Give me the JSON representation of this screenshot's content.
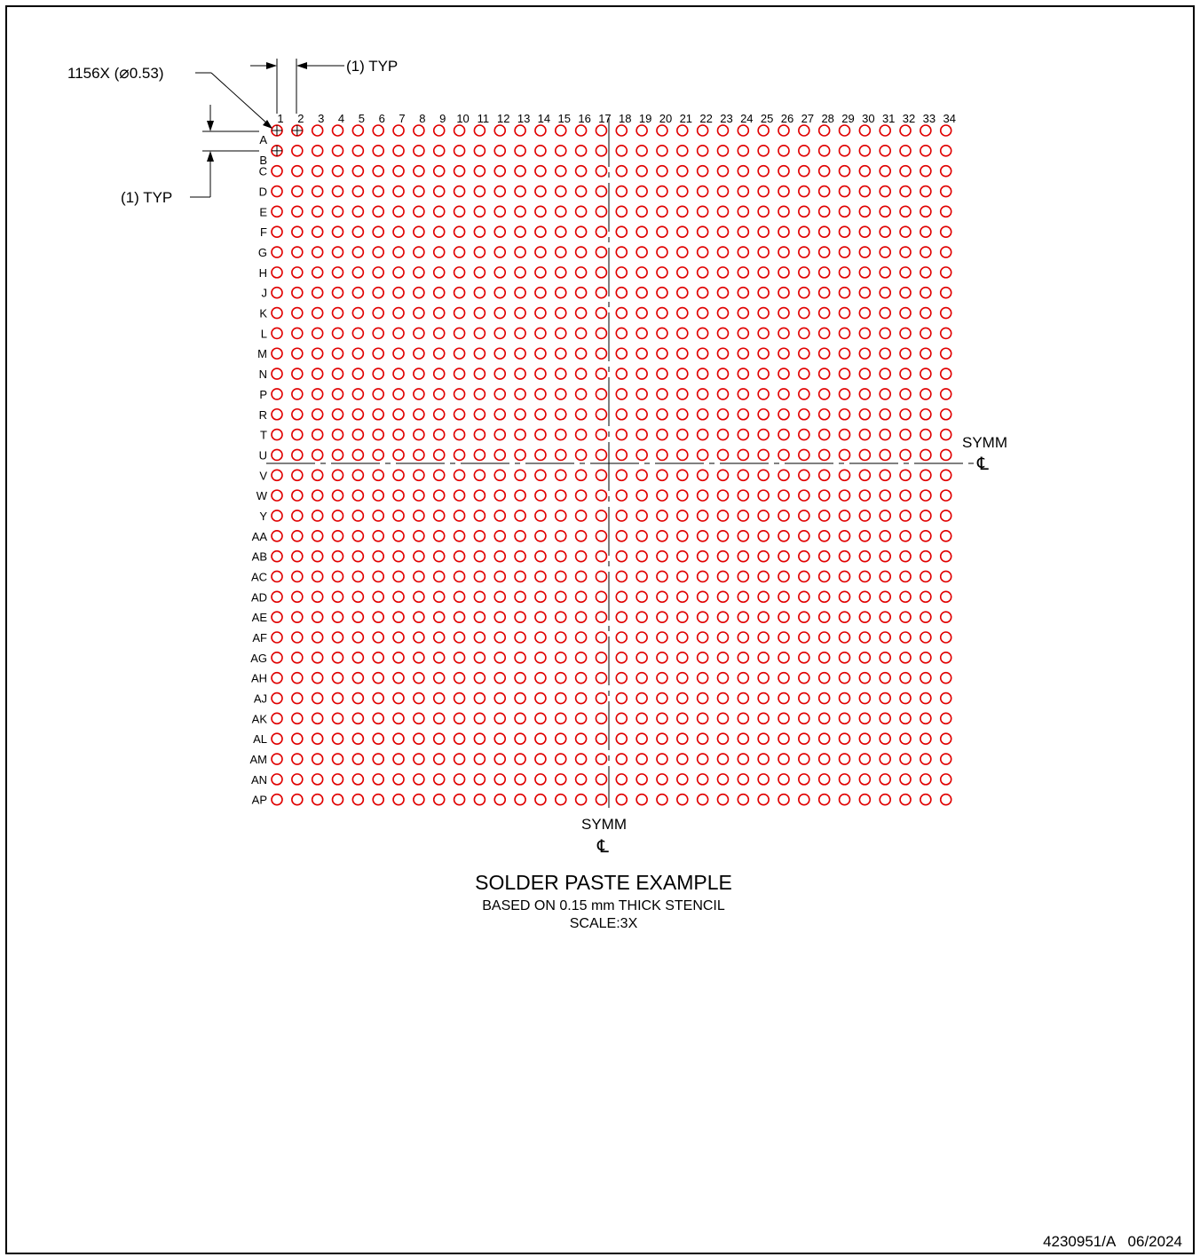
{
  "grid": {
    "pad_count_label": "1156X (",
    "pad_diameter": "0.53)",
    "diameter_symbol": "⌀",
    "pad_color": "#e00000",
    "columns": [
      "1",
      "2",
      "3",
      "4",
      "5",
      "6",
      "7",
      "8",
      "9",
      "10",
      "11",
      "12",
      "13",
      "14",
      "15",
      "16",
      "17",
      "18",
      "19",
      "20",
      "21",
      "22",
      "23",
      "24",
      "25",
      "26",
      "27",
      "28",
      "29",
      "30",
      "31",
      "32",
      "33",
      "34"
    ],
    "rows": [
      "A",
      "B",
      "C",
      "D",
      "E",
      "F",
      "G",
      "H",
      "J",
      "K",
      "L",
      "M",
      "N",
      "P",
      "R",
      "T",
      "U",
      "V",
      "W",
      "Y",
      "AA",
      "AB",
      "AC",
      "AD",
      "AE",
      "AF",
      "AG",
      "AH",
      "AJ",
      "AK",
      "AL",
      "AM",
      "AN",
      "AP"
    ]
  },
  "dimensions": {
    "pitch_x_label": "(1) TYP",
    "pitch_y_label": "(1) TYP"
  },
  "symmetry": {
    "label": "SYMM",
    "symbol": "℄"
  },
  "caption": {
    "title": "SOLDER PASTE EXAMPLE",
    "subtitle": "BASED ON 0.15 mm THICK STENCIL",
    "scale": "SCALE:3X"
  },
  "footer": {
    "doc_id": "4230951/A   06/2024"
  }
}
